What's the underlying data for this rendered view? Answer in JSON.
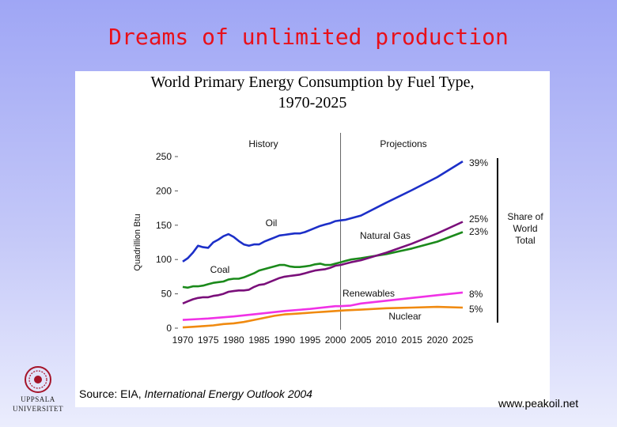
{
  "slide": {
    "title": "Dreams of unlimited production",
    "website": "www.peakoil.net",
    "logo_line1": "UPPSALA",
    "logo_line2": "UNIVERSITET"
  },
  "chart_data": {
    "type": "line",
    "title_line1": "World Primary Energy Consumption by Fuel Type,",
    "title_line2": "1970-2025",
    "ylabel": "Quadrillion Btu",
    "xlabel": "",
    "xlim": [
      1970,
      2025
    ],
    "ylim": [
      0,
      250
    ],
    "x_ticks": [
      1970,
      1975,
      1980,
      1985,
      1990,
      1995,
      2000,
      2005,
      2010,
      2015,
      2020,
      2025
    ],
    "y_ticks": [
      0,
      50,
      100,
      150,
      200,
      250
    ],
    "divider_year": 2001,
    "history_label": "History",
    "projections_label": "Projections",
    "share_label_lines": [
      "Share of",
      "World",
      "Total"
    ],
    "source_prefix": "Source:  EIA, ",
    "source_italic": "International Energy Outlook 2004",
    "series": [
      {
        "name": "Oil",
        "color": "#1c2fc8",
        "share": "39%",
        "x": [
          1970,
          1971,
          1972,
          1973,
          1974,
          1975,
          1976,
          1977,
          1978,
          1979,
          1980,
          1981,
          1982,
          1983,
          1984,
          1985,
          1986,
          1987,
          1988,
          1989,
          1990,
          1991,
          1992,
          1993,
          1994,
          1995,
          1996,
          1997,
          1998,
          1999,
          2000,
          2001,
          2002,
          2003,
          2005,
          2010,
          2015,
          2020,
          2025
        ],
        "values": [
          97,
          102,
          110,
          120,
          118,
          117,
          125,
          129,
          134,
          137,
          133,
          127,
          122,
          120,
          122,
          122,
          126,
          129,
          132,
          135,
          136,
          137,
          138,
          138,
          140,
          143,
          146,
          149,
          151,
          153,
          156,
          157,
          158,
          160,
          164,
          183,
          201,
          220,
          243
        ]
      },
      {
        "name": "Coal",
        "color": "#1b8a1b",
        "share": "23%",
        "x": [
          1970,
          1971,
          1972,
          1973,
          1974,
          1975,
          1976,
          1977,
          1978,
          1979,
          1980,
          1981,
          1982,
          1983,
          1984,
          1985,
          1986,
          1987,
          1988,
          1989,
          1990,
          1991,
          1992,
          1993,
          1994,
          1995,
          1996,
          1997,
          1998,
          1999,
          2000,
          2001,
          2002,
          2003,
          2005,
          2010,
          2015,
          2020,
          2025
        ],
        "values": [
          60,
          59,
          61,
          61,
          62,
          64,
          66,
          67,
          68,
          71,
          72,
          72,
          74,
          77,
          80,
          84,
          86,
          88,
          90,
          92,
          92,
          90,
          89,
          89,
          90,
          91,
          93,
          94,
          92,
          92,
          94,
          96,
          98,
          100,
          102,
          108,
          116,
          126,
          140
        ]
      },
      {
        "name": "Natural Gas",
        "color": "#7a0f7a",
        "share": "25%",
        "x": [
          1970,
          1971,
          1972,
          1973,
          1974,
          1975,
          1976,
          1977,
          1978,
          1979,
          1980,
          1981,
          1982,
          1983,
          1984,
          1985,
          1986,
          1987,
          1988,
          1989,
          1990,
          1991,
          1992,
          1993,
          1994,
          1995,
          1996,
          1997,
          1998,
          1999,
          2000,
          2001,
          2002,
          2003,
          2005,
          2010,
          2015,
          2020,
          2025
        ],
        "values": [
          36,
          39,
          42,
          44,
          45,
          45,
          47,
          48,
          50,
          53,
          54,
          55,
          55,
          56,
          60,
          63,
          64,
          67,
          70,
          73,
          75,
          76,
          77,
          78,
          80,
          82,
          84,
          85,
          86,
          88,
          91,
          92,
          94,
          96,
          99,
          110,
          123,
          138,
          155
        ]
      },
      {
        "name": "Renewables",
        "color": "#f032e6",
        "share": "8%",
        "x": [
          1970,
          1975,
          1980,
          1985,
          1990,
          1995,
          2000,
          2001,
          2003,
          2005,
          2010,
          2015,
          2020,
          2025
        ],
        "values": [
          12,
          14,
          17,
          21,
          25,
          28,
          32,
          32,
          33,
          36,
          40,
          44,
          48,
          52
        ]
      },
      {
        "name": "Nuclear",
        "color": "#f08a10",
        "share": "5%",
        "x": [
          1970,
          1972,
          1974,
          1976,
          1978,
          1980,
          1982,
          1984,
          1986,
          1988,
          1990,
          1992,
          1994,
          1996,
          1998,
          2000,
          2002,
          2005,
          2010,
          2015,
          2020,
          2025
        ],
        "values": [
          1,
          2,
          3,
          4,
          6,
          7,
          9,
          12,
          15,
          18,
          20,
          21,
          22,
          23,
          24,
          25,
          26,
          27,
          29,
          30,
          31,
          30
        ]
      }
    ]
  }
}
